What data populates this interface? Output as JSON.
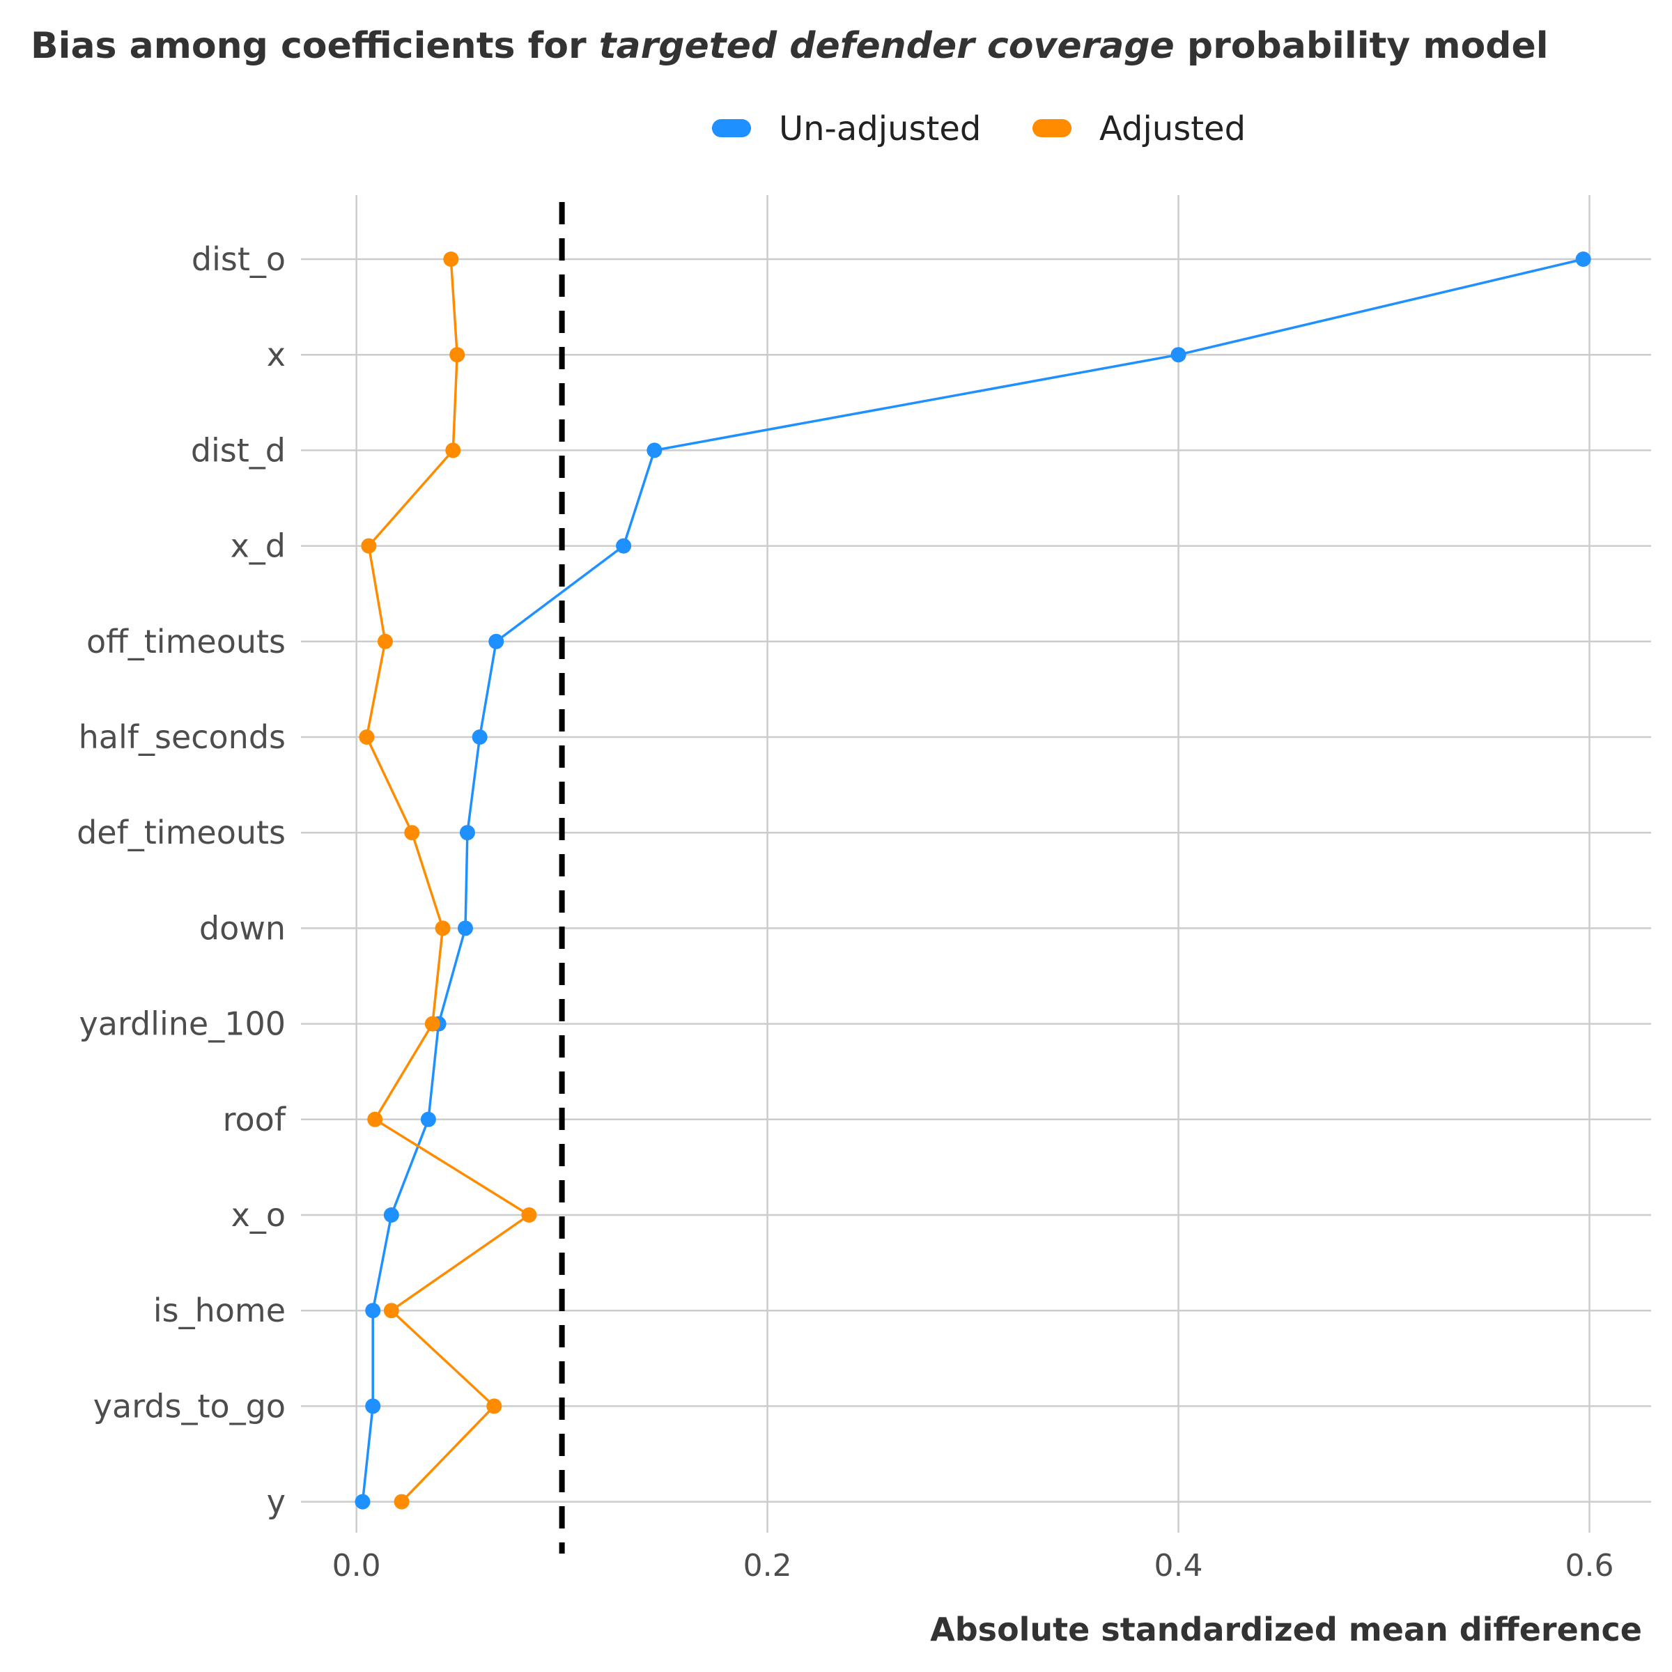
{
  "chart_data": {
    "type": "line",
    "title": {
      "before": "Bias among coefficients for ",
      "emphasis": "targeted defender coverage",
      "after": " probability model"
    },
    "xlabel": "Absolute standardized mean difference",
    "ylabel": "",
    "xlim": [
      -0.027,
      0.63
    ],
    "x_ticks": [
      0.0,
      0.2,
      0.4,
      0.6
    ],
    "x_tick_labels": [
      "0.0",
      "0.2",
      "0.4",
      "0.6"
    ],
    "categories": [
      "dist_o",
      "x",
      "dist_d",
      "x_d",
      "off_timeouts",
      "half_seconds",
      "def_timeouts",
      "down",
      "yardline_100",
      "roof",
      "x_o",
      "is_home",
      "yards_to_go",
      "y"
    ],
    "threshold": 0.1,
    "grid": true,
    "legend_position": "top",
    "series": [
      {
        "name": "Un-adjusted",
        "color": "#1E90FF",
        "values": [
          0.597,
          0.4,
          0.145,
          0.13,
          0.068,
          0.06,
          0.054,
          0.053,
          0.04,
          0.035,
          0.017,
          0.008,
          0.008,
          0.003
        ]
      },
      {
        "name": "Adjusted",
        "color": "#FF8C00",
        "values": [
          0.046,
          0.049,
          0.047,
          0.006,
          0.014,
          0.005,
          0.027,
          0.042,
          0.037,
          0.009,
          0.084,
          0.017,
          0.067,
          0.022
        ]
      }
    ]
  }
}
